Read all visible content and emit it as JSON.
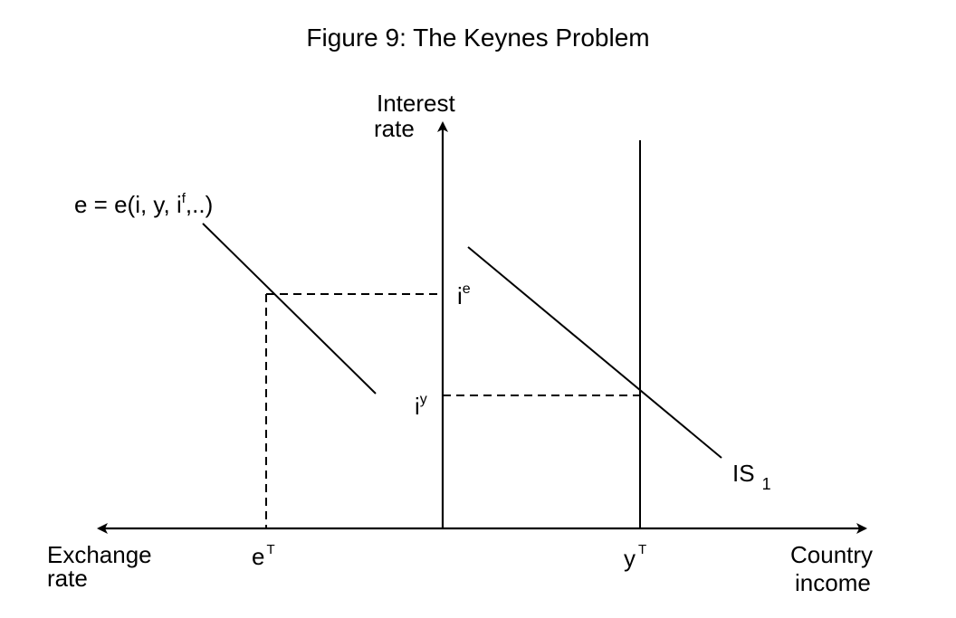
{
  "title": "Figure 9: The Keynes Problem",
  "y_axis_label": [
    "Interest",
    "rate"
  ],
  "x_axis_right_label": [
    "Country",
    "income"
  ],
  "x_axis_left_label": [
    "Exchange",
    "rate"
  ],
  "curves": {
    "exchange_rate_eq": {
      "base": "e = e(i, y, i",
      "sup": "f",
      "tail": ",..)"
    },
    "is_curve": {
      "base": "IS",
      "sub": "1"
    }
  },
  "markers": {
    "i_e": {
      "base": "i",
      "sup": "e"
    },
    "i_y": {
      "base": "i",
      "sup": "y"
    },
    "e_T": {
      "base": "e",
      "sup": "T"
    },
    "y_T": {
      "base": "y",
      "sup": "T"
    }
  }
}
